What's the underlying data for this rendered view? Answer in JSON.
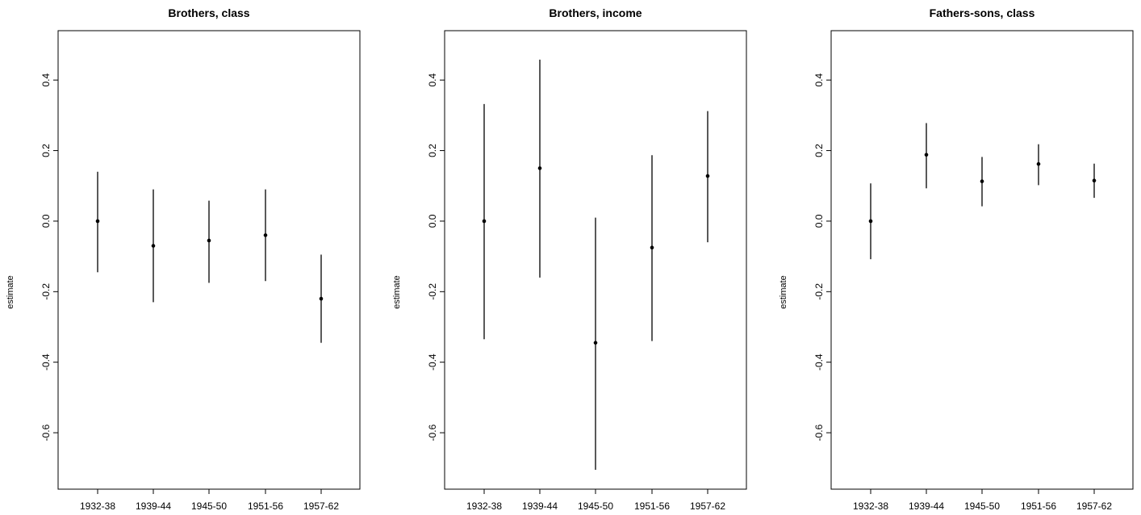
{
  "chart_data": [
    {
      "type": "errorbar",
      "title": "Brothers, class",
      "xlabel": "",
      "ylabel": "estimate",
      "ylim": [
        -0.76,
        0.54
      ],
      "yticks": [
        -0.6,
        -0.4,
        -0.2,
        0.0,
        0.2,
        0.4
      ],
      "ytick_labels": [
        "-0.6",
        "-0.4",
        "-0.2",
        "0.0",
        "0.2",
        "0.4"
      ],
      "categories": [
        "1932-38",
        "1939-44",
        "1945-50",
        "1951-56",
        "1957-62"
      ],
      "estimates": [
        0.0,
        -0.07,
        -0.055,
        -0.04,
        -0.22
      ],
      "lower": [
        -0.145,
        -0.23,
        -0.175,
        -0.17,
        -0.345
      ],
      "upper": [
        0.14,
        0.09,
        0.058,
        0.09,
        -0.095
      ]
    },
    {
      "type": "errorbar",
      "title": "Brothers, income",
      "xlabel": "",
      "ylabel": "estimate",
      "ylim": [
        -0.76,
        0.54
      ],
      "yticks": [
        -0.6,
        -0.4,
        -0.2,
        0.0,
        0.2,
        0.4
      ],
      "ytick_labels": [
        "-0.6",
        "-0.4",
        "-0.2",
        "0.0",
        "0.2",
        "0.4"
      ],
      "categories": [
        "1932-38",
        "1939-44",
        "1945-50",
        "1951-56",
        "1957-62"
      ],
      "estimates": [
        0.0,
        0.15,
        -0.345,
        -0.075,
        0.128
      ],
      "lower": [
        -0.335,
        -0.16,
        -0.705,
        -0.34,
        -0.06
      ],
      "upper": [
        0.332,
        0.458,
        0.01,
        0.187,
        0.312
      ]
    },
    {
      "type": "errorbar",
      "title": "Fathers-sons, class",
      "xlabel": "",
      "ylabel": "estimate",
      "ylim": [
        -0.76,
        0.54
      ],
      "yticks": [
        -0.6,
        -0.4,
        -0.2,
        0.0,
        0.2,
        0.4
      ],
      "ytick_labels": [
        "-0.6",
        "-0.4",
        "-0.2",
        "0.0",
        "0.2",
        "0.4"
      ],
      "categories": [
        "1932-38",
        "1939-44",
        "1945-50",
        "1951-56",
        "1957-62"
      ],
      "estimates": [
        0.0,
        0.188,
        0.113,
        0.162,
        0.115
      ],
      "lower": [
        -0.108,
        0.093,
        0.042,
        0.102,
        0.066
      ],
      "upper": [
        0.107,
        0.278,
        0.182,
        0.218,
        0.163
      ]
    }
  ]
}
